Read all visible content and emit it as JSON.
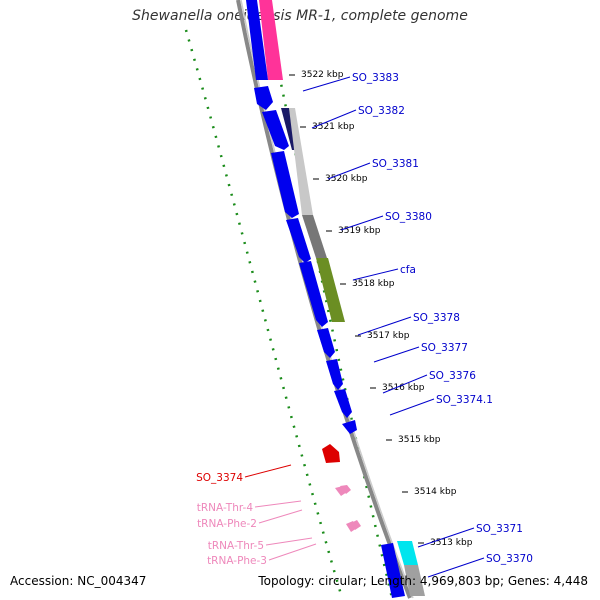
{
  "title": "Shewanella oneidensis MR-1, complete genome",
  "footer": {
    "accession": "Accession: NC_004347",
    "summary": "Topology: circular; Length: 4,969,803 bp; Genes: 4,448"
  },
  "ticks": [
    "3522 kbp",
    "3521 kbp",
    "3520 kbp",
    "3519 kbp",
    "3518 kbp",
    "3517 kbp",
    "3516 kbp",
    "3515 kbp",
    "3514 kbp",
    "3513 kbp"
  ],
  "genes": [
    {
      "label": "SO_3383",
      "color": "#0000cc"
    },
    {
      "label": "SO_3382",
      "color": "#0000cc"
    },
    {
      "label": "SO_3381",
      "color": "#0000cc"
    },
    {
      "label": "SO_3380",
      "color": "#0000cc"
    },
    {
      "label": "cfa",
      "color": "#0000cc"
    },
    {
      "label": "SO_3378",
      "color": "#0000cc"
    },
    {
      "label": "SO_3377",
      "color": "#0000cc"
    },
    {
      "label": "SO_3376",
      "color": "#0000cc"
    },
    {
      "label": "SO_3374.1",
      "color": "#0000cc"
    },
    {
      "label": "SO_3374",
      "color": "#dd0000"
    },
    {
      "label": "tRNA-Thr-4",
      "color": "#ee88bb"
    },
    {
      "label": "tRNA-Phe-2",
      "color": "#ee88bb"
    },
    {
      "label": "tRNA-Thr-5",
      "color": "#ee88bb"
    },
    {
      "label": "tRNA-Phe-3",
      "color": "#ee88bb"
    },
    {
      "label": "SO_3371",
      "color": "#0000cc"
    },
    {
      "label": "SO_3370",
      "color": "#0000cc"
    }
  ],
  "colors": {
    "forward_strand": "#0000ee",
    "rna": "#ee88bb",
    "pseudo": "#dd0000",
    "cog_pink": "#ff3399",
    "cog_navy": "#1a1a66",
    "cog_light_gray": "#c8c8c8",
    "cog_dark_gray": "#777777",
    "cog_olive": "#6b8e23",
    "cog_cyan": "#00e5ee",
    "gc_skew": "#1a8c1a"
  }
}
